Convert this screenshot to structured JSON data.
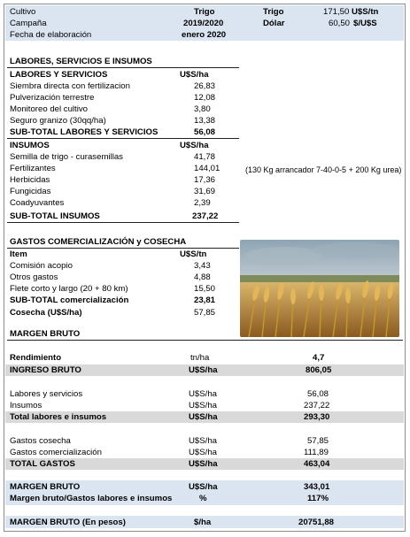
{
  "header": {
    "cultivo_label": "Cultivo",
    "cultivo_value": "Trigo",
    "campana_label": "Campaña",
    "campana_value": "2019/2020",
    "fecha_label": "Fecha de elaboración",
    "fecha_value": "enero 2020",
    "trigo_label": "Trigo",
    "trigo_price": "171,50",
    "trigo_unit": "U$S/tn",
    "dolar_label": "Dólar",
    "dolar_price": "60,50",
    "dolar_unit": "$/U$S"
  },
  "section1": {
    "title": "LABORES, SERVICIOS E INSUMOS",
    "labores_header": "LABORES Y SERVICIOS",
    "labores_unit": "U$S/ha",
    "labores": [
      {
        "label": "Siembra directa con fertilizacion",
        "value": "26,83"
      },
      {
        "label": "Pulverización terrestre",
        "value": "12,08"
      },
      {
        "label": "Monitoreo del cultivo",
        "value": "3,80"
      },
      {
        "label": "Seguro granizo (30qq/ha)",
        "value": "13,38"
      }
    ],
    "labores_subtotal_label": "SUB-TOTAL LABORES Y SERVICIOS",
    "labores_subtotal_value": "56,08",
    "insumos_header": "INSUMOS",
    "insumos_unit": "U$S/ha",
    "insumos": [
      {
        "label": "Semilla de trigo - curasemillas",
        "value": "41,78"
      },
      {
        "label": "Fertilizantes",
        "value": "144,01"
      },
      {
        "label": "Herbicidas",
        "value": "17,36"
      },
      {
        "label": "Fungicidas",
        "value": "31,69"
      },
      {
        "label": "Coadyuvantes",
        "value": "2,39"
      }
    ],
    "fert_note": "(130 Kg arrancador 7-40-0-5 + 200 Kg urea)",
    "insumos_subtotal_label": "SUB-TOTAL INSUMOS",
    "insumos_subtotal_value": "237,22"
  },
  "section2": {
    "title": "GASTOS COMERCIALIZACIÓN y COSECHA",
    "item_header": "Item",
    "item_unit": "U$S/tn",
    "items": [
      {
        "label": "Comisión acopio",
        "value": "3,43"
      },
      {
        "label": "Otros gastos",
        "value": "4,88"
      },
      {
        "label": "Flete corto y largo (20 + 80 km)",
        "value": "15,50"
      }
    ],
    "subtotal_label": "SUB-TOTAL comercialización",
    "subtotal_value": "23,81",
    "cosecha_label": "Cosecha  (U$S/ha)",
    "cosecha_value": "57,85"
  },
  "margen": {
    "title": "MARGEN BRUTO",
    "rendimiento_label": "Rendimiento",
    "rendimiento_unit": "tn/ha",
    "rendimiento_value": "4,7",
    "ingreso_label": "INGRESO BRUTO",
    "ingreso_unit": "U$S/ha",
    "ingreso_value": "806,05",
    "labores_label": "Labores y servicios",
    "labores_unit": "U$S/ha",
    "labores_value": "56,08",
    "insumos_label": "Insumos",
    "insumos_unit": "U$S/ha",
    "insumos_value": "237,22",
    "total_li_label": "Total labores e insumos",
    "total_li_unit": "U$S/ha",
    "total_li_value": "293,30",
    "gcosecha_label": "Gastos cosecha",
    "gcosecha_unit": "U$S/ha",
    "gcosecha_value": "57,85",
    "gcom_label": "Gastos comercialización",
    "gcom_unit": "U$S/ha",
    "gcom_value": "111,89",
    "total_g_label": "TOTAL GASTOS",
    "total_g_unit": "U$S/ha",
    "total_g_value": "463,04",
    "mb_label": "MARGEN BRUTO",
    "mb_unit": "U$S/ha",
    "mb_value": "343,01",
    "mb_ratio_label": "Margen bruto/Gastos labores e insumos",
    "mb_ratio_unit": "%",
    "mb_ratio_value": "117%",
    "mb_pesos_label": "MARGEN BRUTO (En pesos)",
    "mb_pesos_unit": "$/ha",
    "mb_pesos_value": "20751,88"
  },
  "photo_icon": "wheat-field-photo"
}
